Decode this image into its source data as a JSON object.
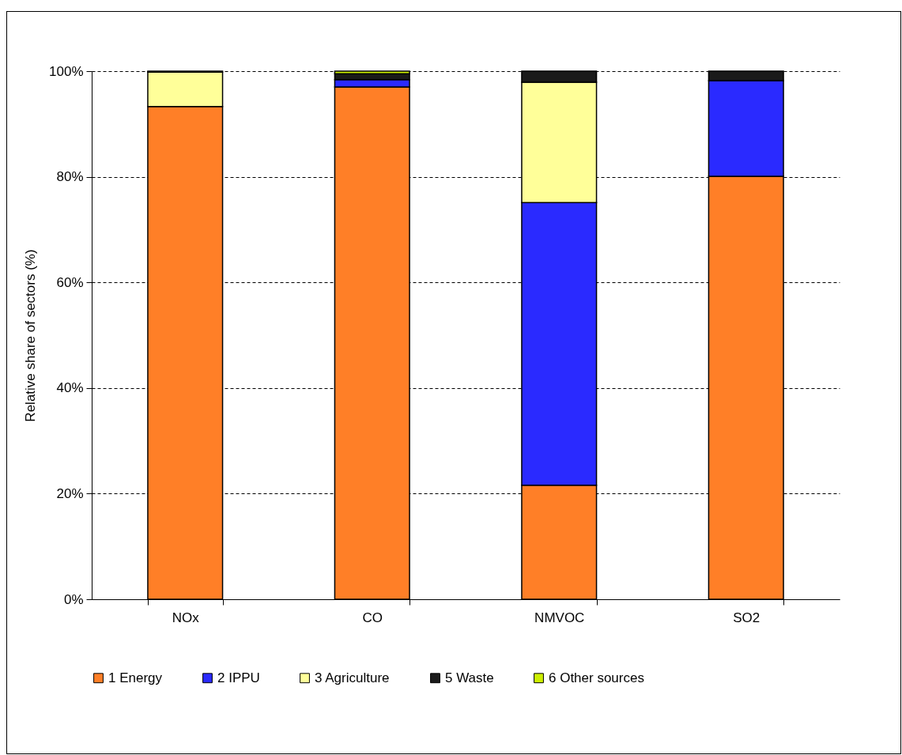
{
  "chart_data": {
    "type": "bar",
    "stacked": true,
    "ylabel": "Relative share of sectors (%)",
    "categories": [
      "NOx",
      "CO",
      "NMVOC",
      "SO2"
    ],
    "series": [
      {
        "name": "1 Energy",
        "color": "#ff7f27",
        "values": [
          93.3,
          97.0,
          21.6,
          80.1
        ]
      },
      {
        "name": "2 IPPU",
        "color": "#2a2aff",
        "values": [
          null,
          1.4,
          53.5,
          18.1
        ]
      },
      {
        "name": "3 Agriculture",
        "color": "#ffff99",
        "values": [
          6.5,
          null,
          22.8,
          null
        ]
      },
      {
        "name": "5 Waste",
        "color": "#1a1a1a",
        "values": [
          null,
          1.1,
          2.1,
          1.8
        ]
      },
      {
        "name": "6 Other sources",
        "color": "#ccee00",
        "values": [
          0.2,
          0.5,
          null,
          null
        ]
      }
    ],
    "ylim": [
      0,
      100
    ],
    "yticks": [
      {
        "value": 0,
        "label": "0%"
      },
      {
        "value": 20,
        "label": "20%"
      },
      {
        "value": 40,
        "label": "40%"
      },
      {
        "value": 60,
        "label": "60%"
      },
      {
        "value": 80,
        "label": "80%"
      },
      {
        "value": 100,
        "label": "100%"
      }
    ],
    "grid": "y",
    "legend": "bottom"
  }
}
